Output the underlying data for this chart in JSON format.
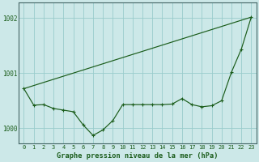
{
  "bg_color": "#cce8e8",
  "grid_color": "#99cccc",
  "line_color": "#1a5c1a",
  "title": "Graphe pression niveau de la mer (hPa)",
  "yticks": [
    1000,
    1001,
    1002
  ],
  "ylim": [
    999.72,
    1002.28
  ],
  "xlim": [
    -0.5,
    23.5
  ],
  "zigzag_x": [
    0,
    1,
    2,
    3,
    4,
    5,
    6,
    7,
    8,
    9,
    10,
    11,
    12,
    13,
    14,
    15,
    16,
    17,
    18,
    19,
    20,
    21,
    22,
    23
  ],
  "zigzag_y": [
    1000.72,
    1000.42,
    1000.43,
    1000.36,
    1000.33,
    1000.3,
    1000.06,
    999.87,
    999.97,
    1000.14,
    1000.43,
    1000.43,
    1000.43,
    1000.43,
    1000.43,
    1000.44,
    1000.54,
    1000.43,
    1000.39,
    1000.41,
    1000.5,
    1001.02,
    1001.44,
    1002.02
  ],
  "trend_x": [
    0,
    23
  ],
  "trend_y": [
    1000.72,
    1002.02
  ],
  "xlabel_ticks": [
    "0",
    "1",
    "2",
    "3",
    "4",
    "5",
    "6",
    "7",
    "8",
    "9",
    "10",
    "11",
    "12",
    "13",
    "14",
    "15",
    "16",
    "17",
    "18",
    "19",
    "20",
    "21",
    "22",
    "23"
  ],
  "spine_color": "#446666",
  "tick_color": "#1a5c1a",
  "tick_fontsize": 5.0,
  "ytick_fontsize": 5.5,
  "title_fontsize": 6.2,
  "linewidth": 0.85,
  "markersize": 3.2
}
